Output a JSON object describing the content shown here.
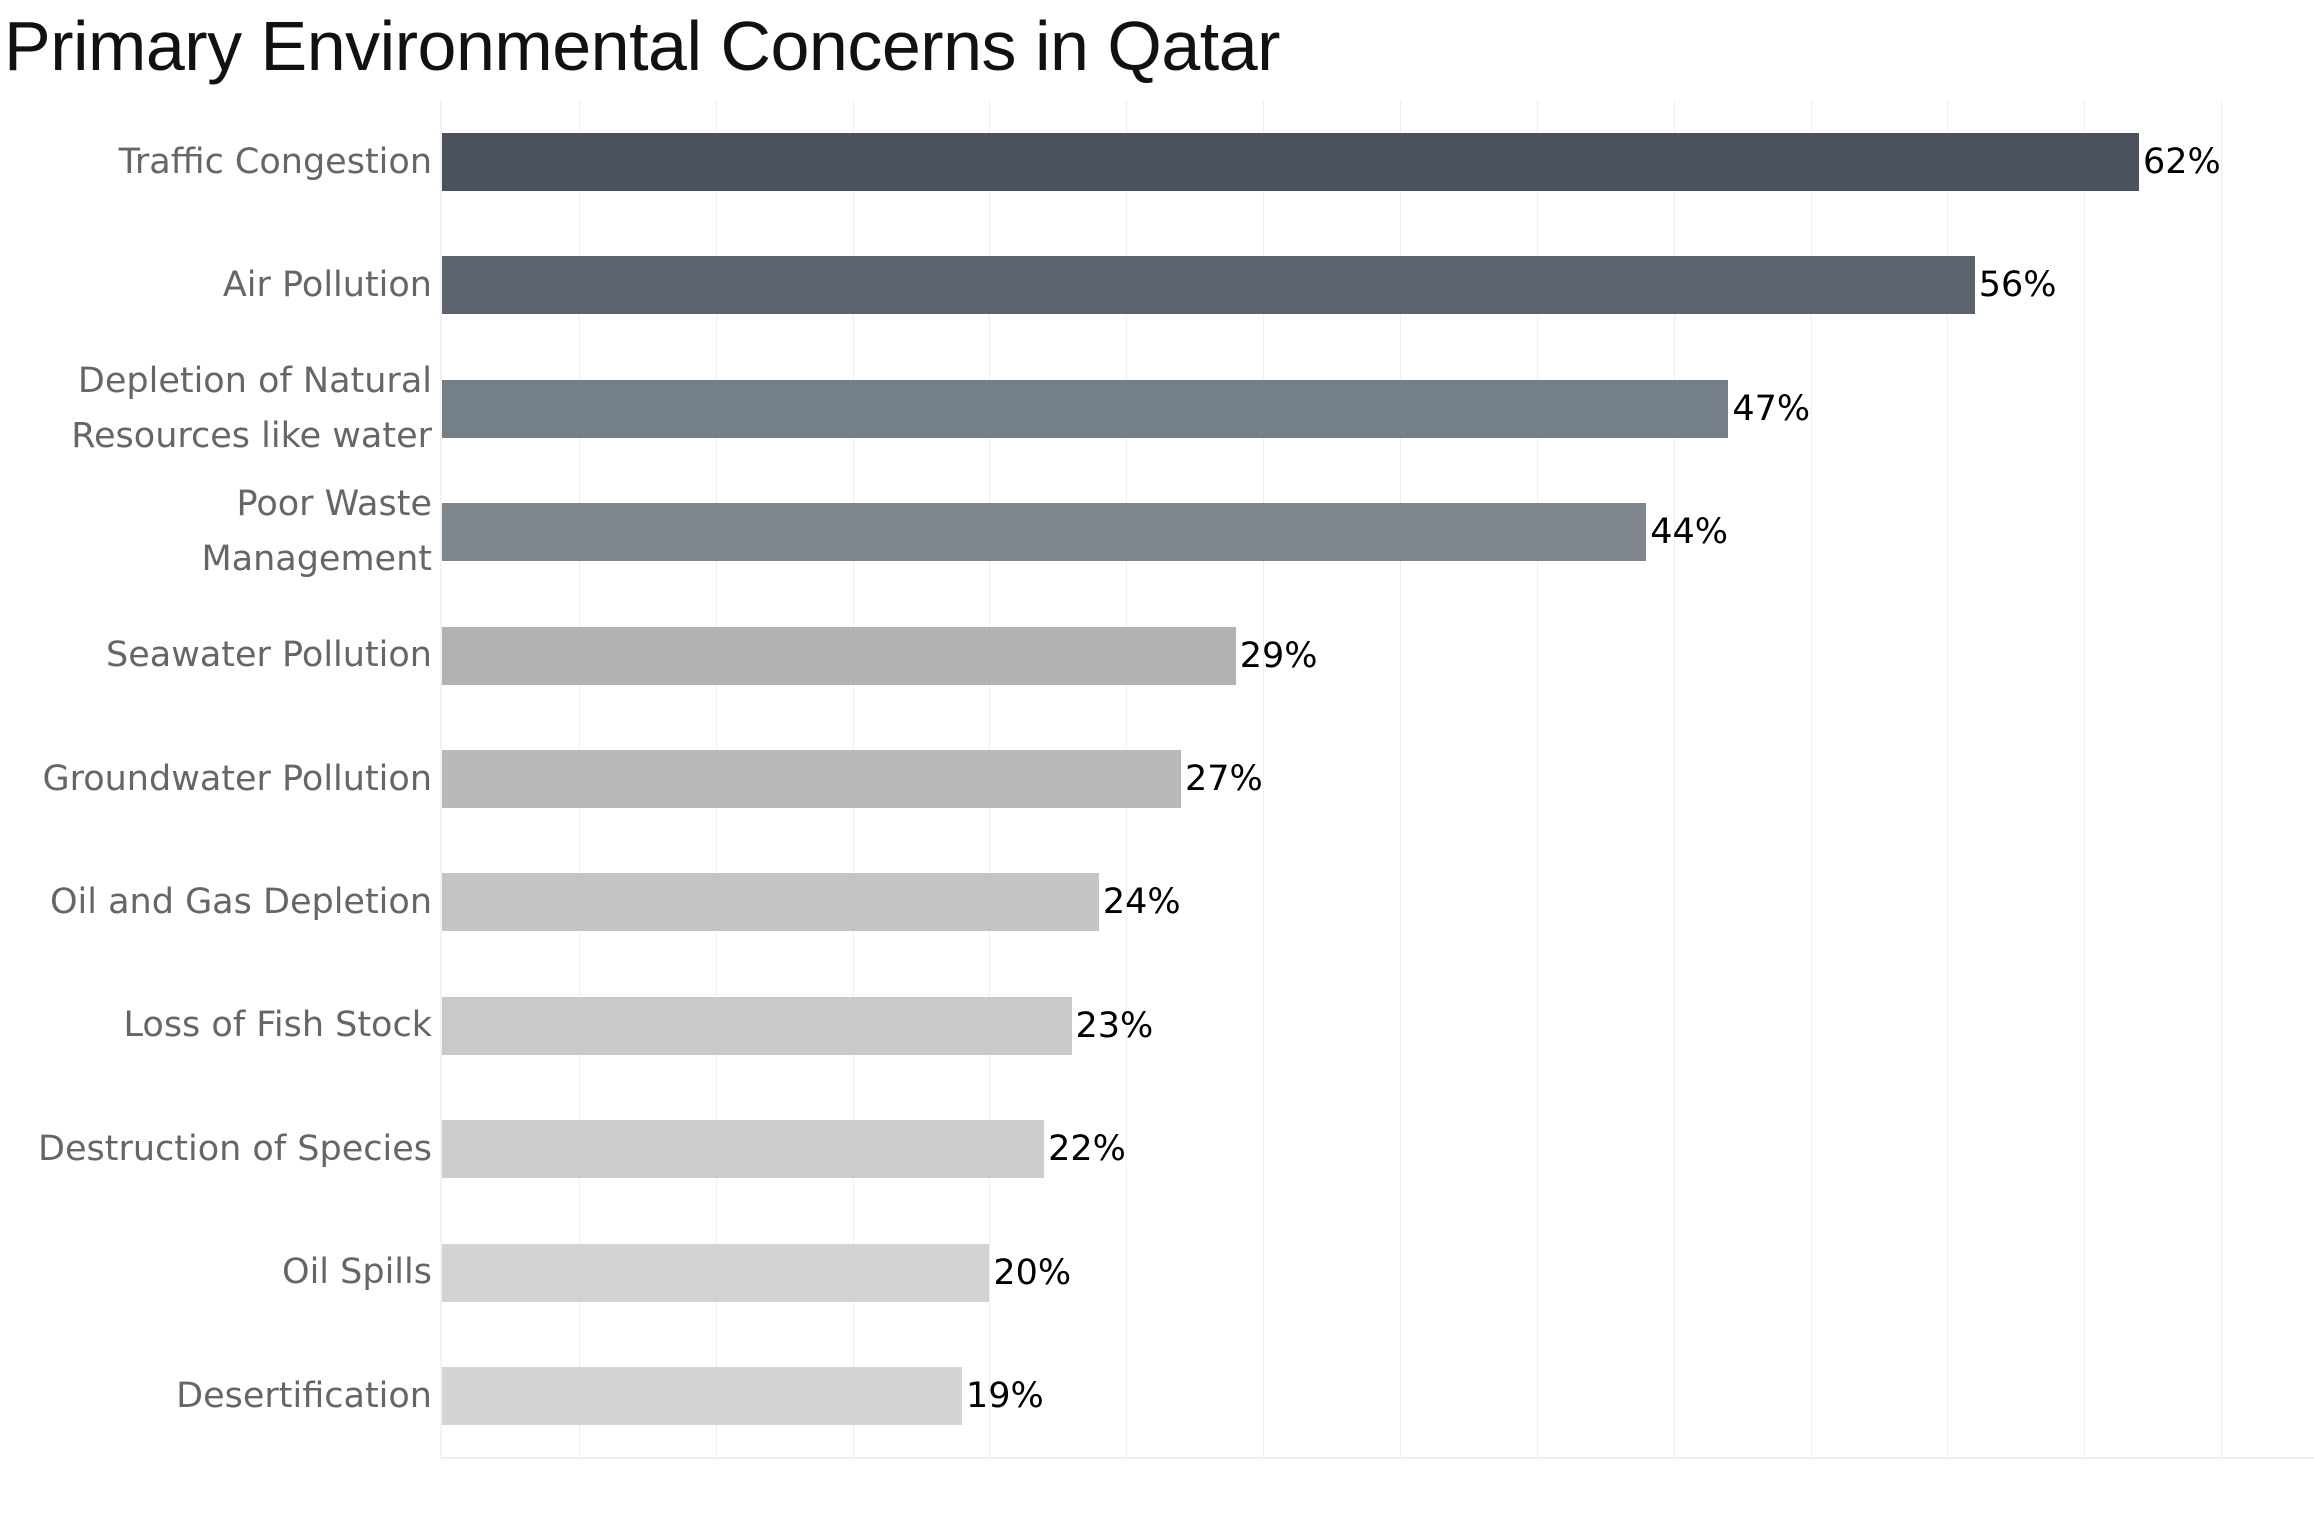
{
  "title": "Primary Environmental Concerns in Qatar",
  "chart_data": {
    "type": "bar",
    "orientation": "horizontal",
    "title": "Primary Environmental Concerns in Qatar",
    "xlabel": "",
    "ylabel": "",
    "xlim": [
      0,
      65
    ],
    "grid": true,
    "gridline_step": 5,
    "legend": "none",
    "categories": [
      "Traffic Congestion",
      "Air Pollution",
      "Depletion of Natural Resources like water",
      "Poor Waste Management",
      "Seawater Pollution",
      "Groundwater Pollution",
      "Oil and Gas Depletion",
      "Loss of Fish Stock",
      "Destruction of Species",
      "Oil Spills",
      "Desertification"
    ],
    "values": [
      62,
      56,
      47,
      44,
      29,
      27,
      24,
      23,
      22,
      20,
      19
    ],
    "value_labels": [
      "62%",
      "56%",
      "47%",
      "44%",
      "29%",
      "27%",
      "24%",
      "23%",
      "22%",
      "20%",
      "19%"
    ],
    "colors": [
      "#4b525e",
      "#5b636c",
      "#757f87",
      "#7f878c",
      "#b0b2b3",
      "#b9b9b9",
      "#c3c4c4",
      "#c8c9c9",
      "#cdcdcd",
      "#d3d3d3",
      "#d4d4d4"
    ]
  },
  "rows": [
    {
      "label": "Traffic Congestion",
      "value": "62%"
    },
    {
      "label": "Air Pollution",
      "value": "56%"
    },
    {
      "label": "Depletion of Natural\nResources like water",
      "value": "47%"
    },
    {
      "label": "Poor Waste\nManagement",
      "value": "44%"
    },
    {
      "label": "Seawater Pollution",
      "value": "29%"
    },
    {
      "label": "Groundwater Pollution",
      "value": "27%"
    },
    {
      "label": "Oil and Gas Depletion",
      "value": "24%"
    },
    {
      "label": "Loss of Fish Stock",
      "value": "23%"
    },
    {
      "label": "Destruction of Species",
      "value": "22%"
    },
    {
      "label": "Oil Spills",
      "value": "20%"
    },
    {
      "label": "Desertification",
      "value": "19%"
    }
  ]
}
